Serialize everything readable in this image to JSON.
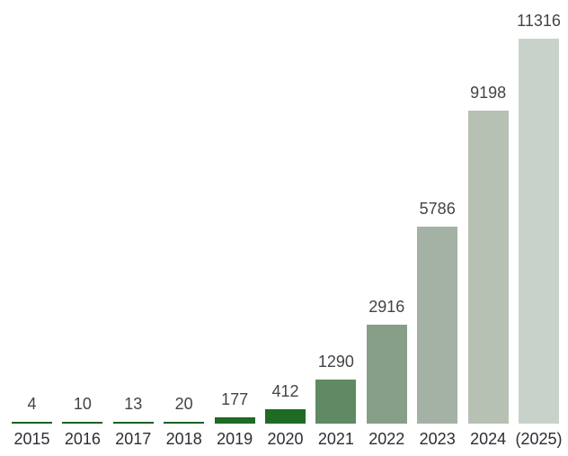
{
  "chart_data": {
    "type": "bar",
    "title": "",
    "xlabel": "",
    "ylabel": "",
    "categories": [
      "2015",
      "2016",
      "2017",
      "2018",
      "2019",
      "2020",
      "2021",
      "2022",
      "2023",
      "2024",
      "(2025)"
    ],
    "values": [
      4,
      10,
      13,
      20,
      177,
      412,
      1290,
      2916,
      5786,
      9198,
      11316
    ],
    "value_labels": [
      "4",
      "10",
      "13",
      "20",
      "177",
      "412",
      "1290",
      "2916",
      "5786",
      "9198",
      "11316"
    ],
    "bar_colors": [
      "#1c6125",
      "#1c6125",
      "#1c6125",
      "#1c6125",
      "#1f6b24",
      "#1f6b24",
      "#5f8a63",
      "#879f87",
      "#a3b2a4",
      "#b6c1b4",
      "#c9d2ca"
    ],
    "value_label_color": "#424448",
    "category_label_color": "#2b2e33",
    "background_color": "#ffffff",
    "ylim": [
      0,
      11316
    ],
    "grid": false,
    "legend_position": "none",
    "axes_shown": false,
    "value_labels_position": "above-bars",
    "category_labels_position": "below-bars"
  }
}
